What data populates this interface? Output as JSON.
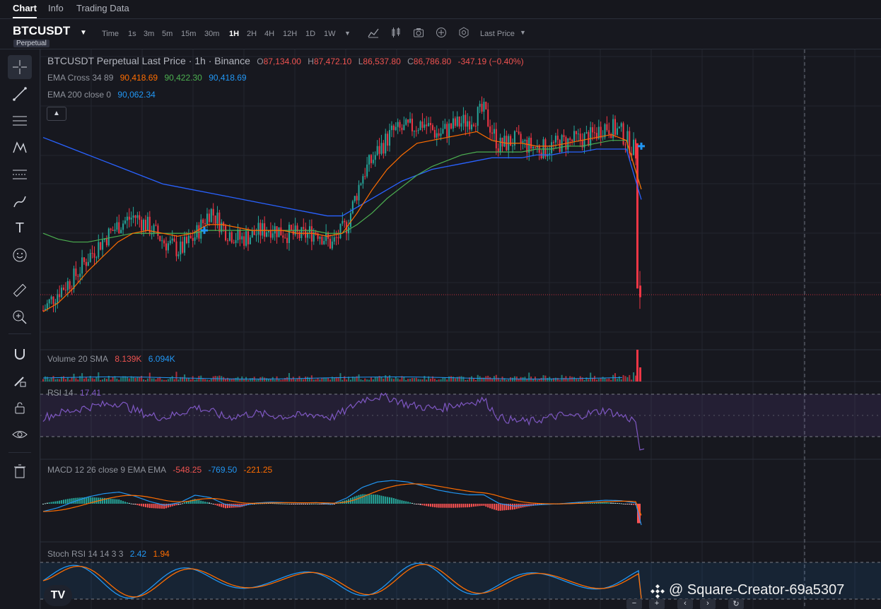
{
  "tabs": [
    "Chart",
    "Info",
    "Trading Data"
  ],
  "header": {
    "symbol": "BTCUSDT",
    "badge": "Perpetual",
    "intervals": [
      "Time",
      "1s",
      "3m",
      "5m",
      "15m",
      "30m",
      "1H",
      "2H",
      "4H",
      "12H",
      "1D",
      "1W"
    ],
    "active_interval": "1H",
    "price_type": "Last Price"
  },
  "main_legend": {
    "title": "BTCUSDT Perpetual Last Price · 1h · Binance",
    "open": "87,134.00",
    "high": "87,472.10",
    "low": "86,537.80",
    "close": "86,786.80",
    "change": "-347.19 (−0.40%)",
    "ema_cross_label": "EMA Cross 34 89",
    "ema_cross_v1": "90,418.69",
    "ema_cross_v2": "90,422.30",
    "ema_cross_v3": "90,418.69",
    "ema200_label": "EMA 200 close 0",
    "ema200_value": "90,062.34"
  },
  "volume_legend": {
    "label": "Volume 20 SMA",
    "v1": "8.139K",
    "v2": "6.094K"
  },
  "rsi_legend": {
    "label": "RSI 14",
    "value": "17.41"
  },
  "macd_legend": {
    "label": "MACD 12 26 close 9 EMA EMA",
    "v1": "-548.25",
    "v2": "-769.50",
    "v3": "-221.25"
  },
  "stoch_legend": {
    "label": "Stoch RSI 14 14 3 3",
    "v1": "2.42",
    "v2": "1.94"
  },
  "watermark": "@ Square-Creator-69a5307",
  "colors": {
    "up": "#26a69a",
    "down": "#f23645",
    "ema34": "#ff6d00",
    "ema89": "#4caf50",
    "ema200": "#2962ff",
    "rsi": "#7e57c2",
    "macd": "#2196f3",
    "signal": "#ff6d00"
  },
  "chart_data": {
    "type": "candlestick",
    "interval": "1h",
    "close_trend": [
      86250,
      86900,
      87350,
      88100,
      88700,
      89200,
      89500,
      89100,
      88600,
      88300,
      88800,
      89700,
      89000,
      88700,
      88900,
      89100,
      88900,
      88800,
      89000,
      88500,
      89200,
      90900,
      91700,
      92400,
      92500,
      92700,
      92300,
      92600,
      92800,
      93100,
      91900,
      92100,
      91900,
      91800,
      92000,
      92100,
      92200,
      92600,
      92400,
      91700,
      87000
    ],
    "ema34_trend": [
      86200,
      86500,
      87000,
      87600,
      88100,
      88600,
      88900,
      89000,
      88900,
      88800,
      88900,
      89200,
      89200,
      89100,
      89000,
      89000,
      89000,
      88900,
      88900,
      88800,
      88900,
      89600,
      90400,
      91100,
      91600,
      92000,
      92100,
      92200,
      92300,
      92400,
      92100,
      92000,
      92000,
      91900,
      91900,
      92000,
      92100,
      92200,
      92300,
      92100,
      90418.69
    ],
    "ema89_trend": [
      88900,
      88700,
      88600,
      88600,
      88700,
      88800,
      88900,
      88900,
      88900,
      88900,
      88900,
      89000,
      89000,
      89000,
      89000,
      89000,
      89000,
      89000,
      89000,
      88900,
      88900,
      89200,
      89600,
      90100,
      90500,
      90900,
      91200,
      91400,
      91600,
      91700,
      91700,
      91700,
      91700,
      91800,
      91800,
      91900,
      91900,
      92000,
      92100,
      92100,
      90422.3
    ],
    "ema200_trend": [
      92200,
      92000,
      91800,
      91600,
      91400,
      91200,
      91000,
      90800,
      90600,
      90500,
      90400,
      90300,
      90200,
      90100,
      90000,
      89900,
      89800,
      89700,
      89600,
      89500,
      89500,
      89800,
      90100,
      90400,
      90700,
      90900,
      91100,
      91200,
      91300,
      91400,
      91500,
      91500,
      91500,
      91600,
      91600,
      91700,
      91700,
      91800,
      91800,
      91800,
      90062.34
    ],
    "rsi_trend": [
      48,
      52,
      55,
      58,
      60,
      62,
      55,
      50,
      48,
      52,
      58,
      54,
      48,
      50,
      52,
      50,
      49,
      50,
      51,
      48,
      55,
      65,
      68,
      66,
      60,
      58,
      56,
      60,
      62,
      65,
      48,
      45,
      44,
      47,
      50,
      49,
      52,
      55,
      50,
      45,
      17.41
    ],
    "macd_trend": [
      -200,
      -100,
      50,
      180,
      260,
      300,
      200,
      60,
      -40,
      30,
      220,
      160,
      -20,
      -60,
      20,
      40,
      30,
      20,
      30,
      -10,
      150,
      420,
      560,
      600,
      560,
      460,
      350,
      280,
      230,
      230,
      10,
      -60,
      -40,
      -20,
      0,
      30,
      60,
      90,
      80,
      20,
      -548.25
    ],
    "ylim": [
      85500,
      94500
    ]
  }
}
